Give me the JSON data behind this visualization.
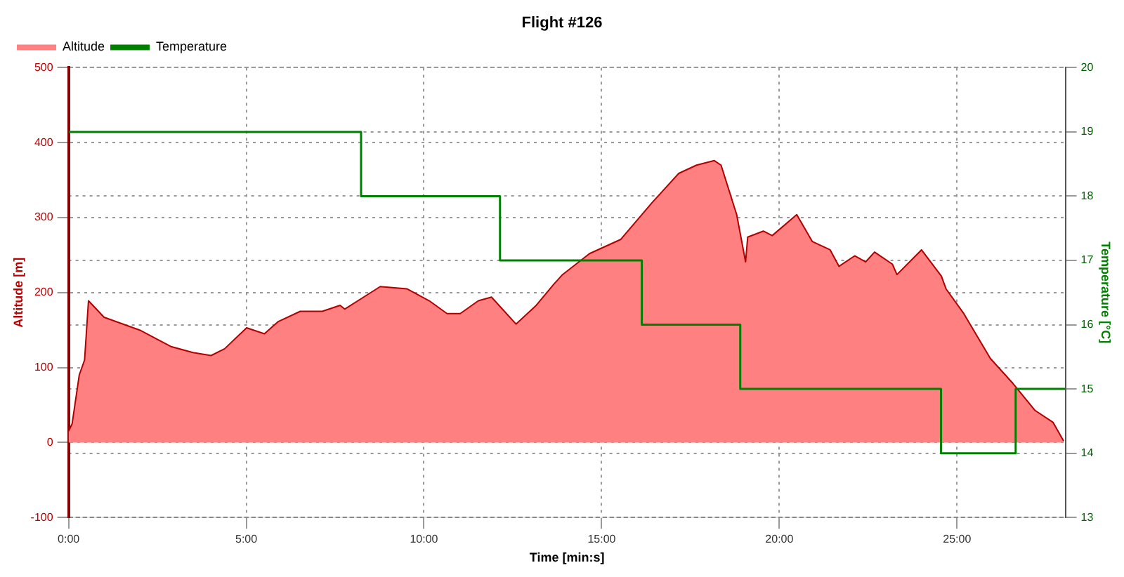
{
  "chart_data": {
    "type": "area",
    "title": "Flight #126",
    "xlabel": "Time [min:s]",
    "ylabel": "Altitude [m]",
    "y2label": "Temperature [°C]",
    "xlim": [
      0,
      28.05
    ],
    "xticks": [
      {
        "value": 0,
        "label": "0:00"
      },
      {
        "value": 5,
        "label": "5:00"
      },
      {
        "value": 10,
        "label": "10:00"
      },
      {
        "value": 15,
        "label": "15:00"
      },
      {
        "value": 20,
        "label": "20:00"
      },
      {
        "value": 25,
        "label": "25:00"
      }
    ],
    "ylim": [
      -100,
      500
    ],
    "yticks": [
      -100,
      0,
      100,
      200,
      300,
      400,
      500
    ],
    "y2lim": [
      13,
      20
    ],
    "y2ticks": [
      13,
      14,
      15,
      16,
      17,
      18,
      19,
      20
    ],
    "grid": true,
    "legend": "top left",
    "series": [
      {
        "name": "Altitude",
        "color": "#ff8080",
        "x": [
          0,
          0.1,
          0.3,
          0.45,
          0.56,
          1.0,
          2.0,
          2.88,
          3.5,
          4.01,
          4.39,
          5.01,
          5.51,
          5.89,
          6.52,
          7.14,
          7.64,
          7.77,
          8.77,
          9.52,
          10.15,
          10.65,
          11.02,
          11.53,
          11.9,
          12.59,
          13.16,
          13.65,
          13.9,
          14.66,
          15.54,
          16.42,
          17.17,
          17.67,
          18.17,
          18.36,
          18.8,
          19.05,
          19.11,
          19.55,
          19.8,
          20.49,
          20.93,
          21.43,
          21.68,
          22.12,
          22.43,
          22.68,
          23.18,
          23.31,
          24.0,
          24.56,
          24.69,
          25.19,
          25.94,
          26.57,
          27.19,
          27.7,
          28.0
        ],
        "values": [
          15,
          25,
          90,
          110,
          189,
          167,
          150,
          128,
          120,
          116,
          125,
          153,
          145,
          161,
          175,
          175,
          183,
          178,
          208,
          205,
          189,
          172,
          172,
          189,
          194,
          158,
          183,
          211,
          224,
          252,
          271,
          320,
          359,
          370,
          376,
          370,
          304,
          241,
          274,
          282,
          276,
          304,
          268,
          257,
          235,
          249,
          241,
          254,
          238,
          224,
          257,
          222,
          205,
          172,
          112,
          79,
          43,
          27,
          2
        ]
      },
      {
        "name": "Temperature",
        "type": "step",
        "axis": "y2",
        "color": "#008000",
        "x": [
          0,
          8.23,
          12.14,
          16.13,
          18.9,
          24.55,
          26.65,
          28.05
        ],
        "values": [
          19,
          18,
          17,
          16,
          15,
          14,
          15,
          15
        ]
      }
    ]
  }
}
